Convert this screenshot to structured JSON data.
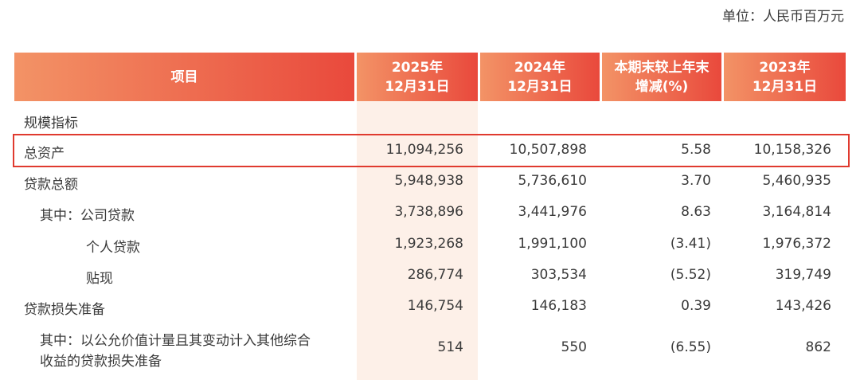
{
  "unit": "单位：人民币百万元",
  "table": {
    "headers": [
      [
        "项目"
      ],
      [
        "2025年",
        "12月31日"
      ],
      [
        "2024年",
        "12月31日"
      ],
      [
        "本期末较上年末",
        "增减(%)"
      ],
      [
        "2023年",
        "12月31日"
      ]
    ],
    "section": "规模指标",
    "rows": [
      {
        "label": [
          "总资产"
        ],
        "values": [
          "11,094,256",
          "10,507,898",
          "5.58",
          "10,158,326"
        ]
      },
      {
        "label": [
          "贷款总额"
        ],
        "values": [
          "5,948,938",
          "5,736,610",
          "3.70",
          "5,460,935"
        ]
      },
      {
        "label": [
          "其中：公司贷款"
        ],
        "values": [
          "3,738,896",
          "3,441,976",
          "8.63",
          "3,164,814"
        ]
      },
      {
        "label": [
          "个人贷款"
        ],
        "values": [
          "1,923,268",
          "1,991,100",
          "(3.41)",
          "1,976,372"
        ]
      },
      {
        "label": [
          "贴现"
        ],
        "values": [
          "286,774",
          "303,534",
          "(5.52)",
          "319,749"
        ]
      },
      {
        "label": [
          "贷款损失准备"
        ],
        "values": [
          "146,754",
          "146,183",
          "0.39",
          "143,426"
        ]
      },
      {
        "label": [
          "其中：以公允价值计量且其变动计入其他综合",
          "收益的贷款损失准备"
        ],
        "values": [
          "514",
          "550",
          "(6.55)",
          "862"
        ]
      }
    ]
  }
}
